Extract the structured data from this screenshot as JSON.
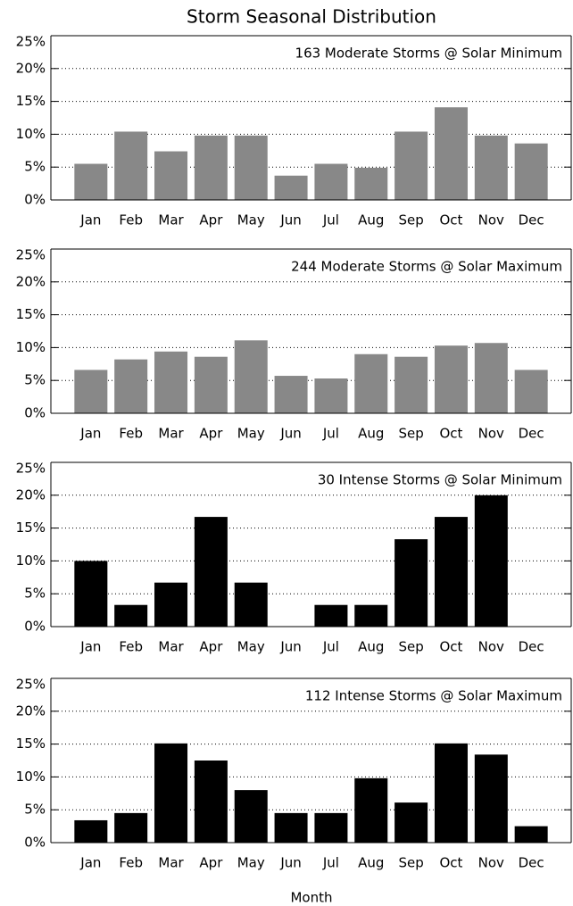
{
  "chart_data": [
    {
      "type": "bar",
      "title": "Storm Seasonal Distribution",
      "subtitle": "163 Moderate Storms @ Solar Minimum",
      "categories": [
        "Jan",
        "Feb",
        "Mar",
        "Apr",
        "May",
        "Jun",
        "Jul",
        "Aug",
        "Sep",
        "Oct",
        "Nov",
        "Dec"
      ],
      "values": [
        5.5,
        10.4,
        7.4,
        9.8,
        9.8,
        3.7,
        5.5,
        4.9,
        10.4,
        14.1,
        9.8,
        8.6
      ],
      "color": "#888888",
      "ylim": [
        0,
        25
      ],
      "yticks": [
        {
          "value": 0,
          "label": "0%"
        },
        {
          "value": 5,
          "label": "5%"
        },
        {
          "value": 10,
          "label": "10%"
        },
        {
          "value": 15,
          "label": "15%"
        },
        {
          "value": 20,
          "label": "20%"
        },
        {
          "value": 25,
          "label": "25%"
        }
      ],
      "grid": true
    },
    {
      "type": "bar",
      "subtitle": "244 Moderate Storms @ Solar Maximum",
      "categories": [
        "Jan",
        "Feb",
        "Mar",
        "Apr",
        "May",
        "Jun",
        "Jul",
        "Aug",
        "Sep",
        "Oct",
        "Nov",
        "Dec"
      ],
      "values": [
        6.6,
        8.2,
        9.4,
        8.6,
        11.1,
        5.7,
        5.3,
        9.0,
        8.6,
        10.3,
        10.7,
        6.6
      ],
      "color": "#888888",
      "ylim": [
        0,
        25
      ],
      "yticks": [
        {
          "value": 0,
          "label": "0%"
        },
        {
          "value": 5,
          "label": "5%"
        },
        {
          "value": 10,
          "label": "10%"
        },
        {
          "value": 15,
          "label": "15%"
        },
        {
          "value": 20,
          "label": "20%"
        },
        {
          "value": 25,
          "label": "25%"
        }
      ],
      "grid": true
    },
    {
      "type": "bar",
      "subtitle": "30 Intense Storms @ Solar Minimum",
      "categories": [
        "Jan",
        "Feb",
        "Mar",
        "Apr",
        "May",
        "Jun",
        "Jul",
        "Aug",
        "Sep",
        "Oct",
        "Nov",
        "Dec"
      ],
      "values": [
        10.0,
        3.3,
        6.7,
        16.7,
        6.7,
        0,
        3.3,
        3.3,
        13.3,
        16.7,
        20.0,
        0
      ],
      "color": "#000000",
      "ylim": [
        0,
        25
      ],
      "yticks": [
        {
          "value": 0,
          "label": "0%"
        },
        {
          "value": 5,
          "label": "5%"
        },
        {
          "value": 10,
          "label": "10%"
        },
        {
          "value": 15,
          "label": "15%"
        },
        {
          "value": 20,
          "label": "20%"
        },
        {
          "value": 25,
          "label": "25%"
        }
      ],
      "grid": true
    },
    {
      "type": "bar",
      "subtitle": "112 Intense Storms @ Solar Maximum",
      "xlabel": "Month",
      "categories": [
        "Jan",
        "Feb",
        "Mar",
        "Apr",
        "May",
        "Jun",
        "Jul",
        "Aug",
        "Sep",
        "Oct",
        "Nov",
        "Dec"
      ],
      "values": [
        3.4,
        4.5,
        15.1,
        12.5,
        8.0,
        4.5,
        4.5,
        9.8,
        6.1,
        15.1,
        13.4,
        2.5
      ],
      "color": "#000000",
      "ylim": [
        0,
        25
      ],
      "yticks": [
        {
          "value": 0,
          "label": "0%"
        },
        {
          "value": 5,
          "label": "5%"
        },
        {
          "value": 10,
          "label": "10%"
        },
        {
          "value": 15,
          "label": "15%"
        },
        {
          "value": 20,
          "label": "20%"
        },
        {
          "value": 25,
          "label": "25%"
        }
      ],
      "grid": true
    }
  ]
}
